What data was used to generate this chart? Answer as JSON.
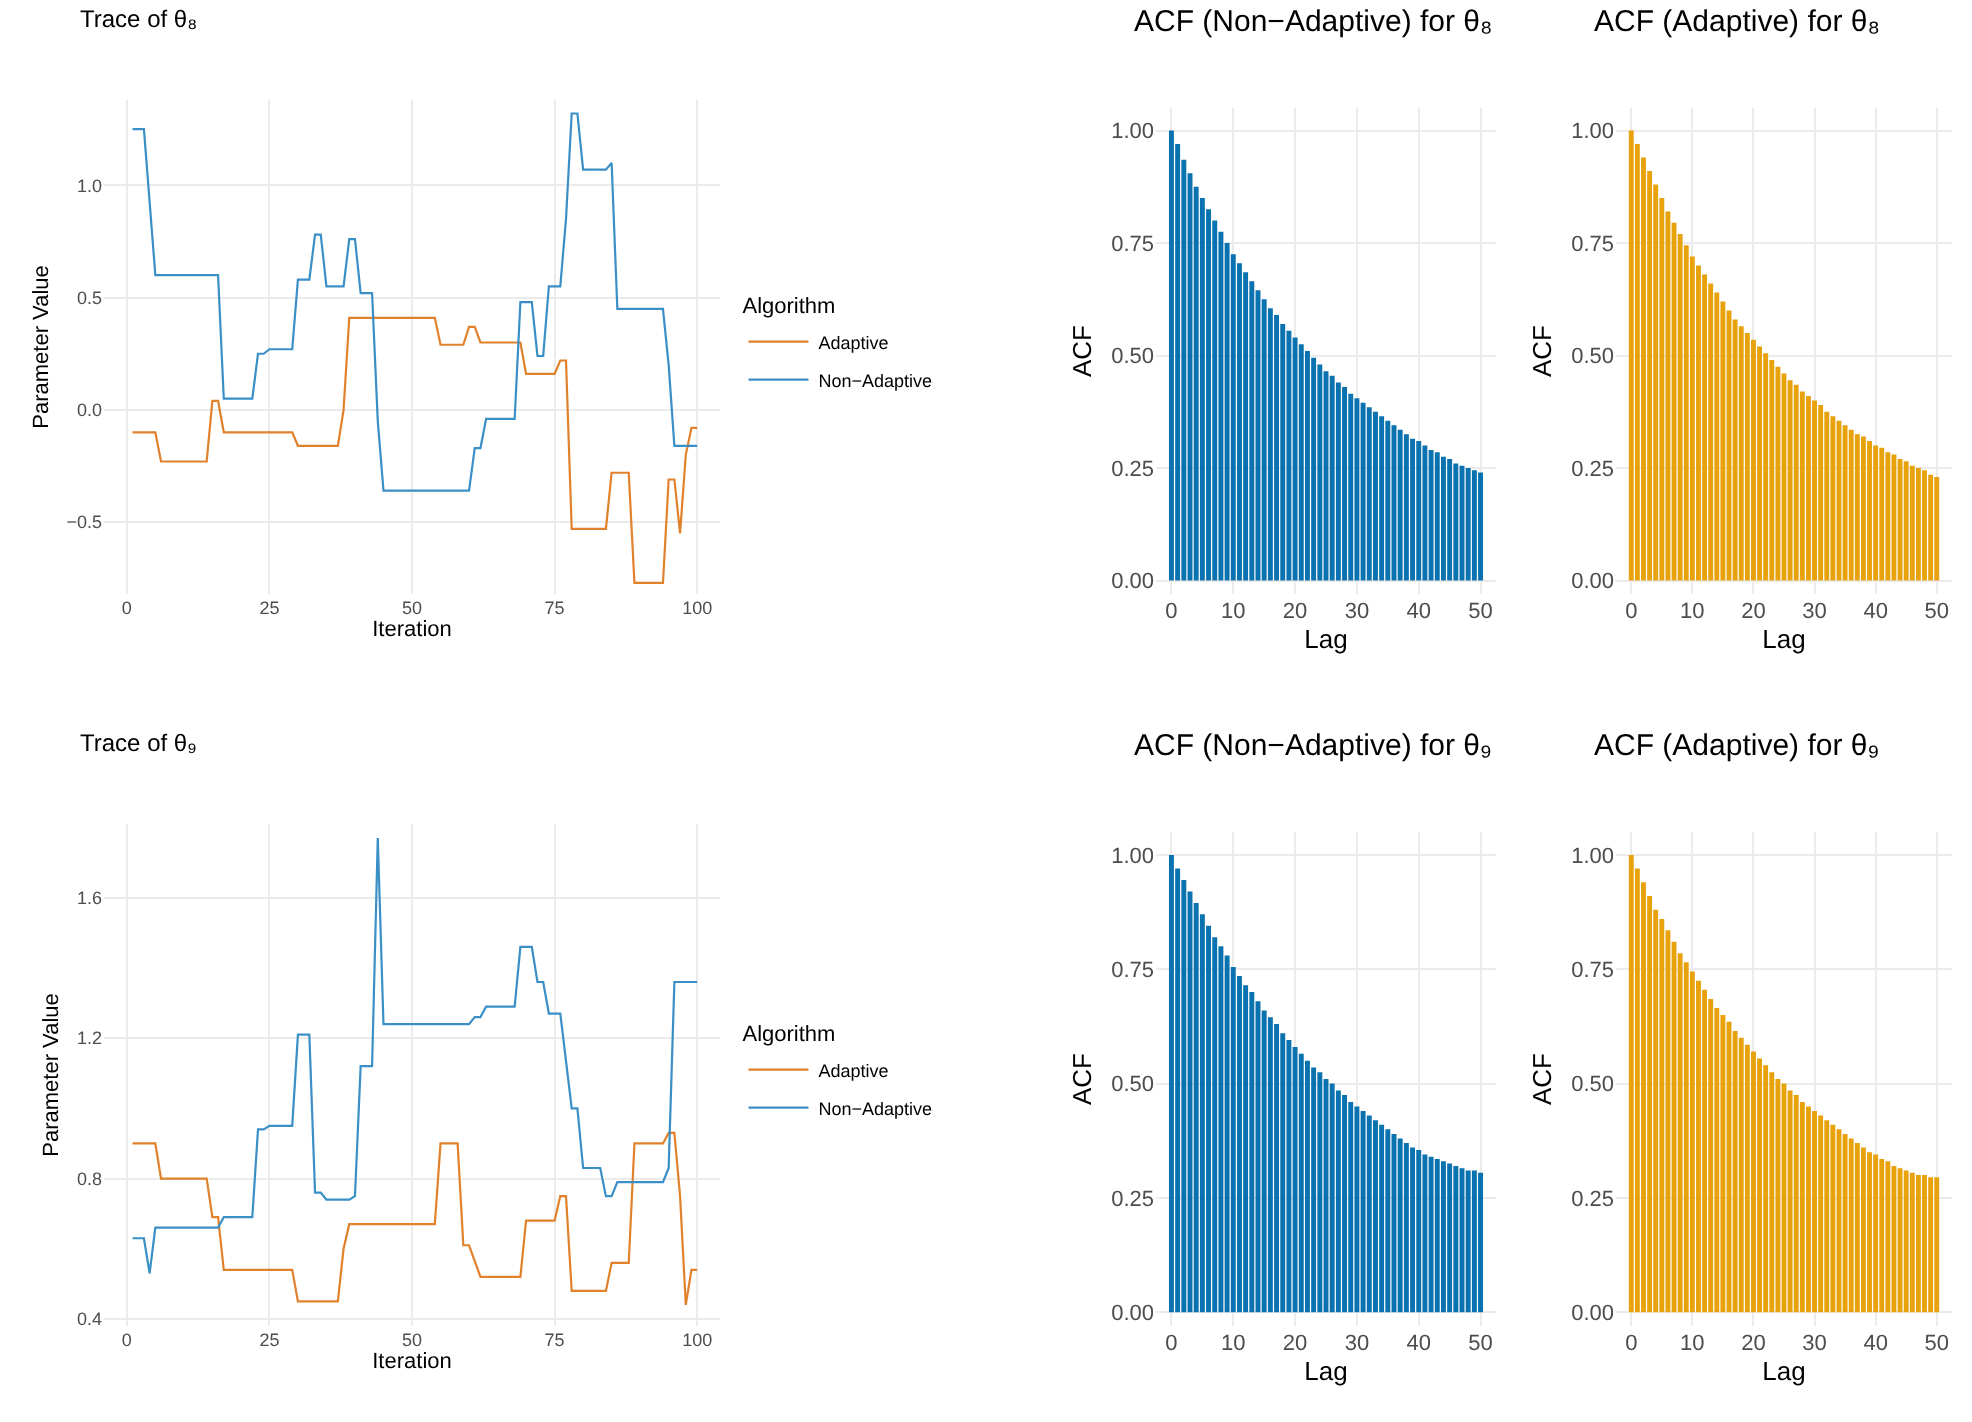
{
  "chart_data": [
    {
      "type": "line",
      "title": "Trace of θ₈",
      "xlabel": "Iteration",
      "ylabel": "Parameter Value",
      "legend_title": "Algorithm",
      "legend": "right",
      "grid": true,
      "xlim": [
        -4,
        104
      ],
      "ylim": [
        -0.82,
        1.38
      ],
      "xticks": [
        0,
        25,
        50,
        75,
        100
      ],
      "yticks": [
        {
          "value": -0.5,
          "label": "−0.5"
        },
        {
          "value": 0,
          "label": "0.0"
        },
        {
          "value": 0.5,
          "label": "0.5"
        },
        {
          "value": 1,
          "label": "1.0"
        }
      ],
      "series": [
        {
          "name": "Adaptive",
          "color": "#e1812c",
          "x": [
            1,
            5,
            6,
            14,
            15,
            16,
            17,
            29,
            30,
            37,
            38,
            39,
            54,
            55,
            59,
            60,
            61,
            62,
            69,
            70,
            75,
            76,
            77,
            78,
            84,
            85,
            88,
            89,
            94,
            95,
            96,
            97,
            98,
            99,
            100
          ],
          "values": [
            -0.1,
            -0.1,
            -0.23,
            -0.23,
            0.04,
            0.04,
            -0.1,
            -0.1,
            -0.16,
            -0.16,
            0.0,
            0.41,
            0.41,
            0.29,
            0.29,
            0.37,
            0.37,
            0.3,
            0.3,
            0.16,
            0.16,
            0.22,
            0.22,
            -0.53,
            -0.53,
            -0.28,
            -0.28,
            -0.77,
            -0.77,
            -0.31,
            -0.31,
            -0.55,
            -0.2,
            -0.08,
            -0.08
          ]
        },
        {
          "name": "Non−Adaptive",
          "color": "#3a8fc6",
          "x": [
            1,
            3,
            5,
            16,
            17,
            22,
            23,
            24,
            25,
            29,
            30,
            32,
            33,
            34,
            35,
            38,
            39,
            40,
            41,
            43,
            44,
            45,
            60,
            61,
            62,
            63,
            68,
            69,
            71,
            72,
            73,
            74,
            76,
            77,
            78,
            79,
            80,
            84,
            85,
            86,
            94,
            95,
            96,
            100
          ],
          "values": [
            1.25,
            1.25,
            0.6,
            0.6,
            0.05,
            0.05,
            0.25,
            0.25,
            0.27,
            0.27,
            0.58,
            0.58,
            0.78,
            0.78,
            0.55,
            0.55,
            0.76,
            0.76,
            0.52,
            0.52,
            -0.05,
            -0.36,
            -0.36,
            -0.17,
            -0.17,
            -0.04,
            -0.04,
            0.48,
            0.48,
            0.24,
            0.24,
            0.55,
            0.55,
            0.85,
            1.32,
            1.32,
            1.07,
            1.07,
            1.1,
            0.45,
            0.45,
            0.2,
            -0.16,
            -0.16
          ]
        }
      ]
    },
    {
      "type": "bar",
      "title": "ACF (Non−Adaptive) for θ₈",
      "xlabel": "Lag",
      "ylabel": "ACF",
      "grid": true,
      "color": "#0b72b0",
      "xlim": [
        -2.5,
        52.5
      ],
      "ylim": [
        -0.03,
        1.05
      ],
      "xticks": [
        0,
        10,
        20,
        30,
        40,
        50
      ],
      "yticks": [
        {
          "value": 0,
          "label": "0.00"
        },
        {
          "value": 0.25,
          "label": "0.25"
        },
        {
          "value": 0.5,
          "label": "0.50"
        },
        {
          "value": 0.75,
          "label": "0.75"
        },
        {
          "value": 1,
          "label": "1.00"
        }
      ],
      "x": [
        0,
        1,
        2,
        3,
        4,
        5,
        6,
        7,
        8,
        9,
        10,
        11,
        12,
        13,
        14,
        15,
        16,
        17,
        18,
        19,
        20,
        21,
        22,
        23,
        24,
        25,
        26,
        27,
        28,
        29,
        30,
        31,
        32,
        33,
        34,
        35,
        36,
        37,
        38,
        39,
        40,
        41,
        42,
        43,
        44,
        45,
        46,
        47,
        48,
        49,
        50
      ],
      "values": [
        1.0,
        0.97,
        0.935,
        0.905,
        0.875,
        0.85,
        0.825,
        0.8,
        0.775,
        0.75,
        0.725,
        0.705,
        0.685,
        0.665,
        0.645,
        0.625,
        0.605,
        0.59,
        0.57,
        0.555,
        0.54,
        0.525,
        0.51,
        0.495,
        0.48,
        0.465,
        0.455,
        0.44,
        0.43,
        0.415,
        0.405,
        0.395,
        0.385,
        0.375,
        0.365,
        0.355,
        0.345,
        0.335,
        0.325,
        0.315,
        0.31,
        0.3,
        0.29,
        0.285,
        0.275,
        0.27,
        0.26,
        0.255,
        0.25,
        0.245,
        0.24
      ]
    },
    {
      "type": "bar",
      "title": "ACF (Adaptive) for θ₈",
      "xlabel": "Lag",
      "ylabel": "ACF",
      "grid": true,
      "color": "#e8a20c",
      "xlim": [
        -2.5,
        52.5
      ],
      "ylim": [
        -0.03,
        1.05
      ],
      "xticks": [
        0,
        10,
        20,
        30,
        40,
        50
      ],
      "yticks": [
        {
          "value": 0,
          "label": "0.00"
        },
        {
          "value": 0.25,
          "label": "0.25"
        },
        {
          "value": 0.5,
          "label": "0.50"
        },
        {
          "value": 0.75,
          "label": "0.75"
        },
        {
          "value": 1,
          "label": "1.00"
        }
      ],
      "x": [
        0,
        1,
        2,
        3,
        4,
        5,
        6,
        7,
        8,
        9,
        10,
        11,
        12,
        13,
        14,
        15,
        16,
        17,
        18,
        19,
        20,
        21,
        22,
        23,
        24,
        25,
        26,
        27,
        28,
        29,
        30,
        31,
        32,
        33,
        34,
        35,
        36,
        37,
        38,
        39,
        40,
        41,
        42,
        43,
        44,
        45,
        46,
        47,
        48,
        49,
        50
      ],
      "values": [
        1.0,
        0.97,
        0.94,
        0.91,
        0.88,
        0.85,
        0.82,
        0.795,
        0.77,
        0.745,
        0.72,
        0.7,
        0.68,
        0.66,
        0.64,
        0.62,
        0.6,
        0.58,
        0.565,
        0.55,
        0.535,
        0.52,
        0.505,
        0.49,
        0.475,
        0.46,
        0.445,
        0.435,
        0.42,
        0.41,
        0.4,
        0.39,
        0.375,
        0.365,
        0.355,
        0.345,
        0.335,
        0.325,
        0.32,
        0.31,
        0.3,
        0.295,
        0.285,
        0.28,
        0.27,
        0.265,
        0.255,
        0.25,
        0.245,
        0.235,
        0.23
      ]
    },
    {
      "type": "line",
      "title": "Trace of θ₉",
      "xlabel": "Iteration",
      "ylabel": "Parameter Value",
      "legend_title": "Algorithm",
      "legend": "right",
      "grid": true,
      "xlim": [
        -4,
        104
      ],
      "ylim": [
        0.38,
        1.81
      ],
      "xticks": [
        0,
        25,
        50,
        75,
        100
      ],
      "yticks": [
        {
          "value": 0.4,
          "label": "0.4"
        },
        {
          "value": 0.8,
          "label": "0.8"
        },
        {
          "value": 1.2,
          "label": "1.2"
        },
        {
          "value": 1.6,
          "label": "1.6"
        }
      ],
      "series": [
        {
          "name": "Adaptive",
          "color": "#e1812c",
          "x": [
            1,
            5,
            6,
            14,
            15,
            16,
            17,
            29,
            30,
            37,
            38,
            39,
            54,
            55,
            58,
            59,
            60,
            62,
            69,
            70,
            75,
            76,
            77,
            78,
            84,
            85,
            88,
            89,
            94,
            95,
            96,
            97,
            98,
            99,
            100
          ],
          "values": [
            0.9,
            0.9,
            0.8,
            0.8,
            0.69,
            0.69,
            0.54,
            0.54,
            0.45,
            0.45,
            0.6,
            0.67,
            0.67,
            0.9,
            0.9,
            0.61,
            0.61,
            0.52,
            0.52,
            0.68,
            0.68,
            0.75,
            0.75,
            0.48,
            0.48,
            0.56,
            0.56,
            0.9,
            0.9,
            0.93,
            0.93,
            0.75,
            0.44,
            0.54,
            0.54
          ]
        },
        {
          "name": "Non−Adaptive",
          "color": "#3a8fc6",
          "x": [
            1,
            3,
            4,
            5,
            16,
            17,
            22,
            23,
            24,
            25,
            29,
            30,
            32,
            33,
            34,
            35,
            39,
            40,
            41,
            43,
            44,
            45,
            60,
            61,
            62,
            63,
            68,
            69,
            71,
            72,
            73,
            74,
            76,
            78,
            79,
            80,
            83,
            84,
            85,
            86,
            94,
            95,
            96,
            100
          ],
          "values": [
            0.63,
            0.63,
            0.53,
            0.66,
            0.66,
            0.69,
            0.69,
            0.94,
            0.94,
            0.95,
            0.95,
            1.21,
            1.21,
            0.76,
            0.76,
            0.74,
            0.74,
            0.75,
            1.12,
            1.12,
            1.77,
            1.24,
            1.24,
            1.26,
            1.26,
            1.29,
            1.29,
            1.46,
            1.46,
            1.36,
            1.36,
            1.27,
            1.27,
            1.0,
            1.0,
            0.83,
            0.83,
            0.75,
            0.75,
            0.79,
            0.79,
            0.83,
            1.36,
            1.36
          ]
        }
      ]
    },
    {
      "type": "bar",
      "title": "ACF (Non−Adaptive) for θ₉",
      "xlabel": "Lag",
      "ylabel": "ACF",
      "grid": true,
      "color": "#0b72b0",
      "xlim": [
        -2.5,
        52.5
      ],
      "ylim": [
        -0.03,
        1.05
      ],
      "xticks": [
        0,
        10,
        20,
        30,
        40,
        50
      ],
      "yticks": [
        {
          "value": 0,
          "label": "0.00"
        },
        {
          "value": 0.25,
          "label": "0.25"
        },
        {
          "value": 0.5,
          "label": "0.50"
        },
        {
          "value": 0.75,
          "label": "0.75"
        },
        {
          "value": 1,
          "label": "1.00"
        }
      ],
      "x": [
        0,
        1,
        2,
        3,
        4,
        5,
        6,
        7,
        8,
        9,
        10,
        11,
        12,
        13,
        14,
        15,
        16,
        17,
        18,
        19,
        20,
        21,
        22,
        23,
        24,
        25,
        26,
        27,
        28,
        29,
        30,
        31,
        32,
        33,
        34,
        35,
        36,
        37,
        38,
        39,
        40,
        41,
        42,
        43,
        44,
        45,
        46,
        47,
        48,
        49,
        50
      ],
      "values": [
        1.0,
        0.97,
        0.945,
        0.92,
        0.895,
        0.87,
        0.845,
        0.82,
        0.8,
        0.78,
        0.755,
        0.735,
        0.715,
        0.7,
        0.68,
        0.66,
        0.645,
        0.63,
        0.61,
        0.595,
        0.58,
        0.565,
        0.55,
        0.535,
        0.525,
        0.51,
        0.5,
        0.485,
        0.475,
        0.46,
        0.45,
        0.44,
        0.43,
        0.42,
        0.41,
        0.4,
        0.39,
        0.38,
        0.37,
        0.36,
        0.355,
        0.345,
        0.34,
        0.335,
        0.33,
        0.325,
        0.32,
        0.315,
        0.31,
        0.31,
        0.305
      ]
    },
    {
      "type": "bar",
      "title": "ACF (Adaptive) for θ₉",
      "xlabel": "Lag",
      "ylabel": "ACF",
      "grid": true,
      "color": "#e8a20c",
      "xlim": [
        -2.5,
        52.5
      ],
      "ylim": [
        -0.03,
        1.05
      ],
      "xticks": [
        0,
        10,
        20,
        30,
        40,
        50
      ],
      "yticks": [
        {
          "value": 0,
          "label": "0.00"
        },
        {
          "value": 0.25,
          "label": "0.25"
        },
        {
          "value": 0.5,
          "label": "0.50"
        },
        {
          "value": 0.75,
          "label": "0.75"
        },
        {
          "value": 1,
          "label": "1.00"
        }
      ],
      "x": [
        0,
        1,
        2,
        3,
        4,
        5,
        6,
        7,
        8,
        9,
        10,
        11,
        12,
        13,
        14,
        15,
        16,
        17,
        18,
        19,
        20,
        21,
        22,
        23,
        24,
        25,
        26,
        27,
        28,
        29,
        30,
        31,
        32,
        33,
        34,
        35,
        36,
        37,
        38,
        39,
        40,
        41,
        42,
        43,
        44,
        45,
        46,
        47,
        48,
        49,
        50
      ],
      "values": [
        1.0,
        0.97,
        0.94,
        0.91,
        0.88,
        0.86,
        0.835,
        0.81,
        0.785,
        0.765,
        0.745,
        0.725,
        0.705,
        0.685,
        0.665,
        0.65,
        0.635,
        0.615,
        0.6,
        0.585,
        0.57,
        0.555,
        0.54,
        0.525,
        0.51,
        0.5,
        0.485,
        0.475,
        0.46,
        0.45,
        0.44,
        0.43,
        0.42,
        0.41,
        0.4,
        0.39,
        0.38,
        0.37,
        0.36,
        0.35,
        0.345,
        0.335,
        0.33,
        0.32,
        0.315,
        0.31,
        0.305,
        0.3,
        0.3,
        0.295,
        0.295
      ]
    }
  ]
}
